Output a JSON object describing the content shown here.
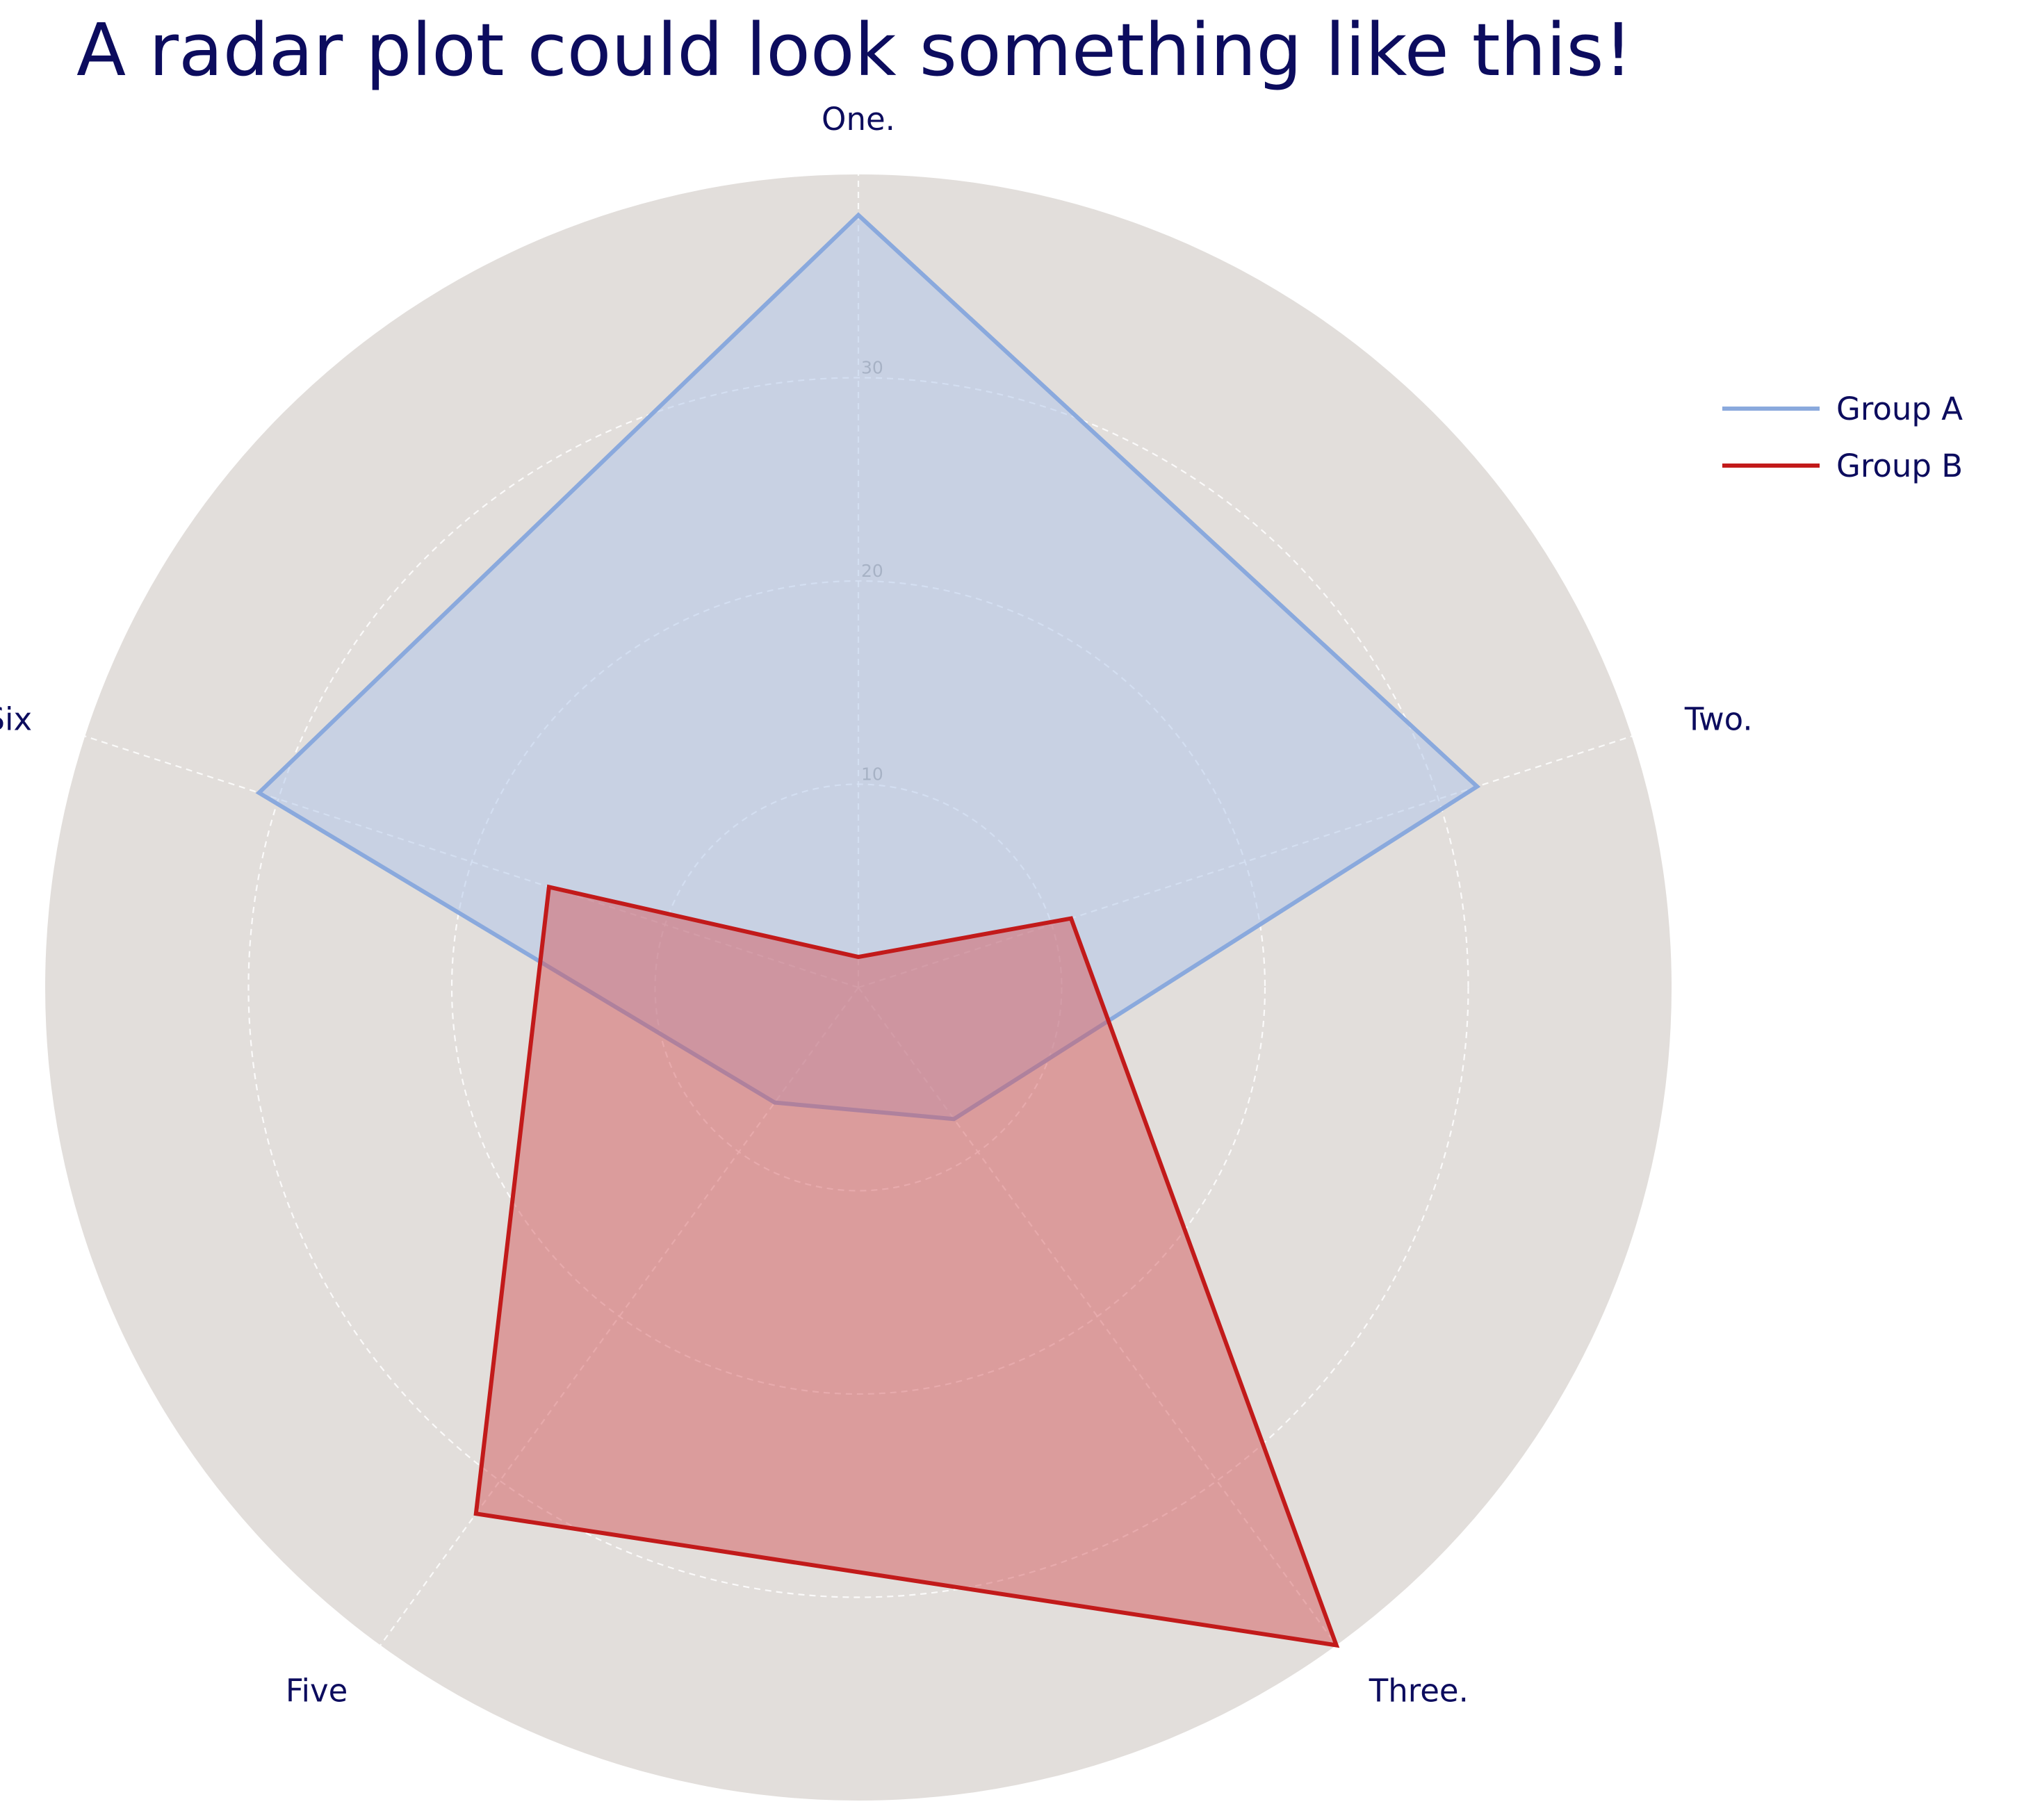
{
  "colors": {
    "background": "#e2dedb",
    "grid": "#ffffff",
    "text": "#0c0c5e",
    "tick_text": "#9a9a9a",
    "group_a_line": "#8aa9dd",
    "group_a_fill": "#b3c6e9",
    "group_b_line": "#c21a1a",
    "group_b_fill": "#d4595d"
  },
  "chart_data": {
    "type": "radar",
    "title": "A radar plot could look something like this!",
    "categories": [
      "One.",
      "Two.",
      "Three.",
      "Five",
      "Six"
    ],
    "rlim": [
      0,
      40
    ],
    "rticks": [
      10,
      20,
      30,
      40
    ],
    "rtick_labels": [
      "10",
      "20",
      "30",
      ""
    ],
    "grid": true,
    "legend_position": "top-right",
    "series": [
      {
        "name": "Group A",
        "values": [
          38,
          32,
          8,
          7,
          31
        ]
      },
      {
        "name": "Group B",
        "values": [
          1.5,
          11,
          40,
          32,
          16
        ]
      }
    ]
  }
}
